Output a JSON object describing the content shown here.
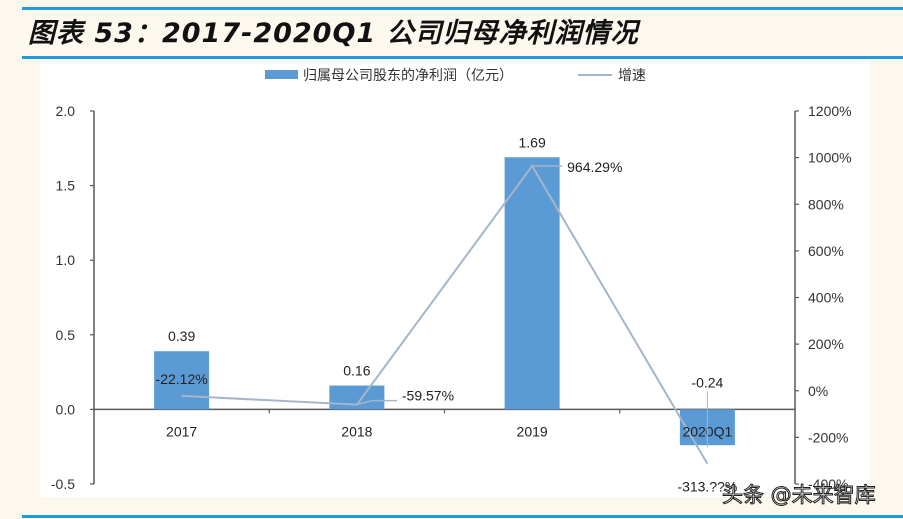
{
  "figure": {
    "title": "图表 53：2017-2020Q1 公司归母净利润情况",
    "watermark": "头条 @未来智库"
  },
  "colors": {
    "bar": "#5b9bd5",
    "line": "#a6b5c8",
    "rule": "#1f9be0",
    "page_bg": "#fdf8ee",
    "axis": "#595959"
  },
  "chart_data": {
    "type": "bar",
    "title": "2017-2020Q1 公司归母净利润情况",
    "categories": [
      "2017",
      "2018",
      "2019",
      "2020Q1"
    ],
    "series": [
      {
        "name": "归属母公司股东的净利润（亿元）",
        "type": "bar",
        "axis": "left",
        "values": [
          0.39,
          0.16,
          1.69,
          -0.24
        ],
        "labels": [
          "0.39",
          "0.16",
          "1.69",
          "-0.24"
        ]
      },
      {
        "name": "增速",
        "type": "line",
        "axis": "right",
        "values": [
          -22.12,
          -59.57,
          964.29,
          -313.0
        ],
        "labels": [
          "-22.12%",
          "-59.57%",
          "964.29%",
          "-313.??%"
        ]
      }
    ],
    "left_axis": {
      "ylim": [
        -0.5,
        2.0
      ],
      "ticks": [
        "2.0",
        "1.5",
        "1.0",
        "0.5",
        "0.0",
        "-0.5"
      ]
    },
    "right_axis": {
      "ylim": [
        -400,
        1200
      ],
      "ticks": [
        "1200%",
        "1000%",
        "800%",
        "600%",
        "400%",
        "200%",
        "0%",
        "-200%",
        "-400%"
      ]
    },
    "legend": {
      "position": "top",
      "entries": [
        "归属母公司股东的净利润（亿元）",
        "增速"
      ]
    },
    "grid": false,
    "xlabel": "",
    "ylabel": ""
  }
}
